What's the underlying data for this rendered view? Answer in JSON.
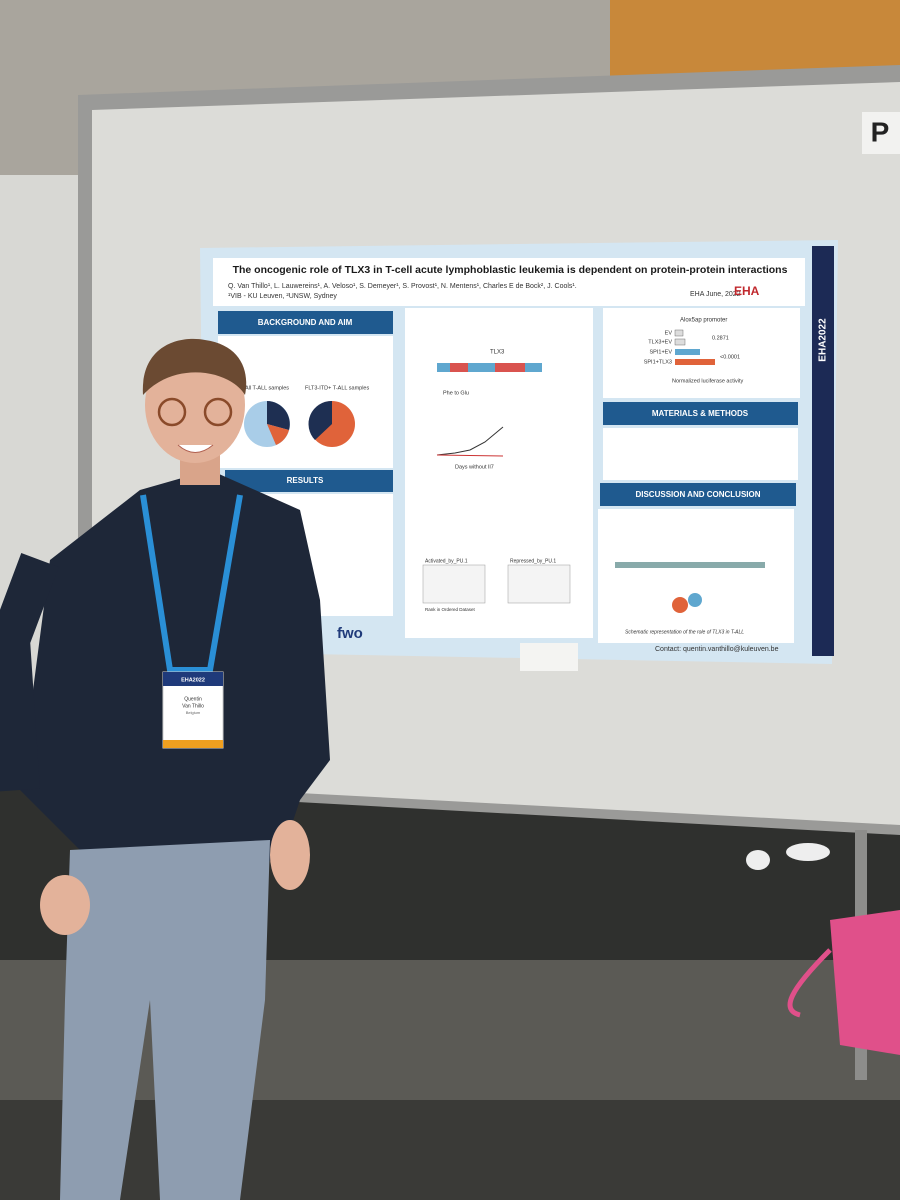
{
  "board": {
    "sign": "P"
  },
  "poster": {
    "title": "The oncogenic role of TLX3 in T-cell acute lymphoblastic leukemia is dependent on protein-protein interactions",
    "authors": "Q. Van Thillo¹, L. Lauwereins¹, A. Veloso¹, S. Demeyer¹, S. Provost¹, N. Mentens¹, Charles E de Bock², J. Cools¹.",
    "affiliations": "¹VIB - KU Leuven, ²UNSW, Sydney",
    "conference": "EHA June, 2022",
    "logo": "EHA",
    "side_label": "EHA2022",
    "sections": {
      "background": "BACKGROUND AND AIM",
      "results": "RESULTS",
      "methods": "MATERIALS & METHODS",
      "discussion": "DISCUSSION AND CONCLUSION"
    },
    "panels": {
      "samples_all": "All T-ALL samples",
      "samples_itd": "FLT3-ITD+ T-ALL samples",
      "tlx3_domain": "TLX3",
      "mutation": "Phe to Glu",
      "days": "Days without Il7",
      "activated": "Activated_by_PU.1",
      "repressed": "Repressed_by_PU.1",
      "rank": "Rank in Ordered Dataset",
      "promoter": "Alox5ap promoter",
      "luciferase": "Normalized luciferase activity",
      "schematic": "Schematic representation of the role of TLX3 in T-ALL"
    },
    "luciferase_labels": [
      "EV",
      "TLX3+EV",
      "SPI1+EV",
      "SPI1+TLX3"
    ],
    "p_values": [
      "0.2871",
      "<0.0001"
    ],
    "funder": "fwo",
    "contact": "Contact: quentin.vanthillo@kuleuven.be"
  },
  "badge": {
    "event": "EHA2022",
    "name_first": "Quentin",
    "name_last": "Van Thillo",
    "country": "Belgium"
  }
}
